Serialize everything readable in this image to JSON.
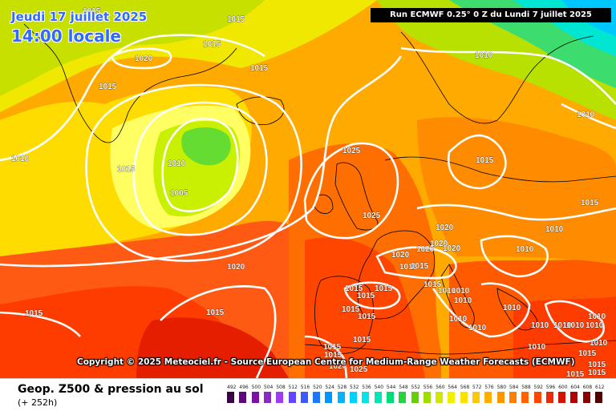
{
  "header": {
    "date": "Jeudi 17 juillet 2025",
    "local_time": "14:00 locale",
    "run": "Run ECMWF 0.25° 0 Z du Lundi 7 juillet 2025"
  },
  "copyright": "Copyright © 2025 Meteociel.fr - Source European Centre for Medium-Range Weather Forecasts (ECMWF)",
  "footer": {
    "field": "Geop. Z500 & pression au sol",
    "lead": "(+ 252h)"
  },
  "isobar_labels": [
    {
      "label": "1015"
    },
    {
      "label": "1015"
    },
    {
      "label": "1015"
    },
    {
      "label": "1015"
    },
    {
      "label": "1020"
    },
    {
      "label": "1015"
    },
    {
      "label": "1015"
    },
    {
      "label": "1010"
    },
    {
      "label": "1015"
    },
    {
      "label": "1010"
    },
    {
      "label": "1005"
    },
    {
      "label": "1025"
    },
    {
      "label": "1025"
    },
    {
      "label": "1020"
    },
    {
      "label": "1010"
    },
    {
      "label": "1015"
    },
    {
      "label": "1010"
    },
    {
      "label": "1015"
    },
    {
      "label": "1010"
    },
    {
      "label": "1020"
    },
    {
      "label": "1020"
    },
    {
      "label": "1020"
    },
    {
      "label": "1020"
    },
    {
      "label": "1015"
    },
    {
      "label": "1015"
    },
    {
      "label": "1015"
    },
    {
      "label": "1010"
    },
    {
      "label": "1015"
    },
    {
      "label": "1010"
    },
    {
      "label": "1010"
    },
    {
      "label": "1010"
    },
    {
      "label": "1015"
    },
    {
      "label": "1015"
    },
    {
      "label": "1015"
    },
    {
      "label": "1015"
    },
    {
      "label": "1015"
    },
    {
      "label": "1015"
    },
    {
      "label": "1015"
    },
    {
      "label": "1020"
    },
    {
      "label": "1025"
    },
    {
      "label": "1010"
    },
    {
      "label": "1010"
    },
    {
      "label": "1010"
    },
    {
      "label": "1010"
    },
    {
      "label": "1010"
    },
    {
      "label": "1010"
    },
    {
      "label": "1010"
    },
    {
      "label": "1010"
    },
    {
      "label": "1010"
    },
    {
      "label": "1015"
    },
    {
      "label": "1015"
    },
    {
      "label": "1015"
    },
    {
      "label": "1015"
    },
    {
      "label": "1010"
    },
    {
      "label": "1020"
    },
    {
      "label": "1015"
    }
  ],
  "color_scale": {
    "labels": [
      "492",
      "496",
      "500",
      "504",
      "508",
      "512",
      "516",
      "520",
      "524",
      "528",
      "532",
      "536",
      "540",
      "544",
      "548",
      "552",
      "556",
      "560",
      "564",
      "568",
      "572",
      "576",
      "580",
      "584",
      "588",
      "592",
      "596",
      "600",
      "604",
      "608",
      "612"
    ],
    "colors": [
      "#3c0046",
      "#5a0a78",
      "#7814a0",
      "#8c28c8",
      "#a03cf0",
      "#6446ff",
      "#3c5aff",
      "#1e78ff",
      "#0096ff",
      "#00b4ff",
      "#00d2ff",
      "#00e6e6",
      "#00e6b4",
      "#00dc78",
      "#28d23c",
      "#64d200",
      "#a0dc00",
      "#d2e600",
      "#f0f000",
      "#ffe100",
      "#ffc800",
      "#ffaf00",
      "#ff9600",
      "#ff7d00",
      "#ff6400",
      "#ff4600",
      "#f02800",
      "#d21400",
      "#b40000",
      "#8c0000",
      "#500000"
    ]
  },
  "colors": {
    "accent_blue": "#2f6bff",
    "isobar": "#ffffff"
  }
}
